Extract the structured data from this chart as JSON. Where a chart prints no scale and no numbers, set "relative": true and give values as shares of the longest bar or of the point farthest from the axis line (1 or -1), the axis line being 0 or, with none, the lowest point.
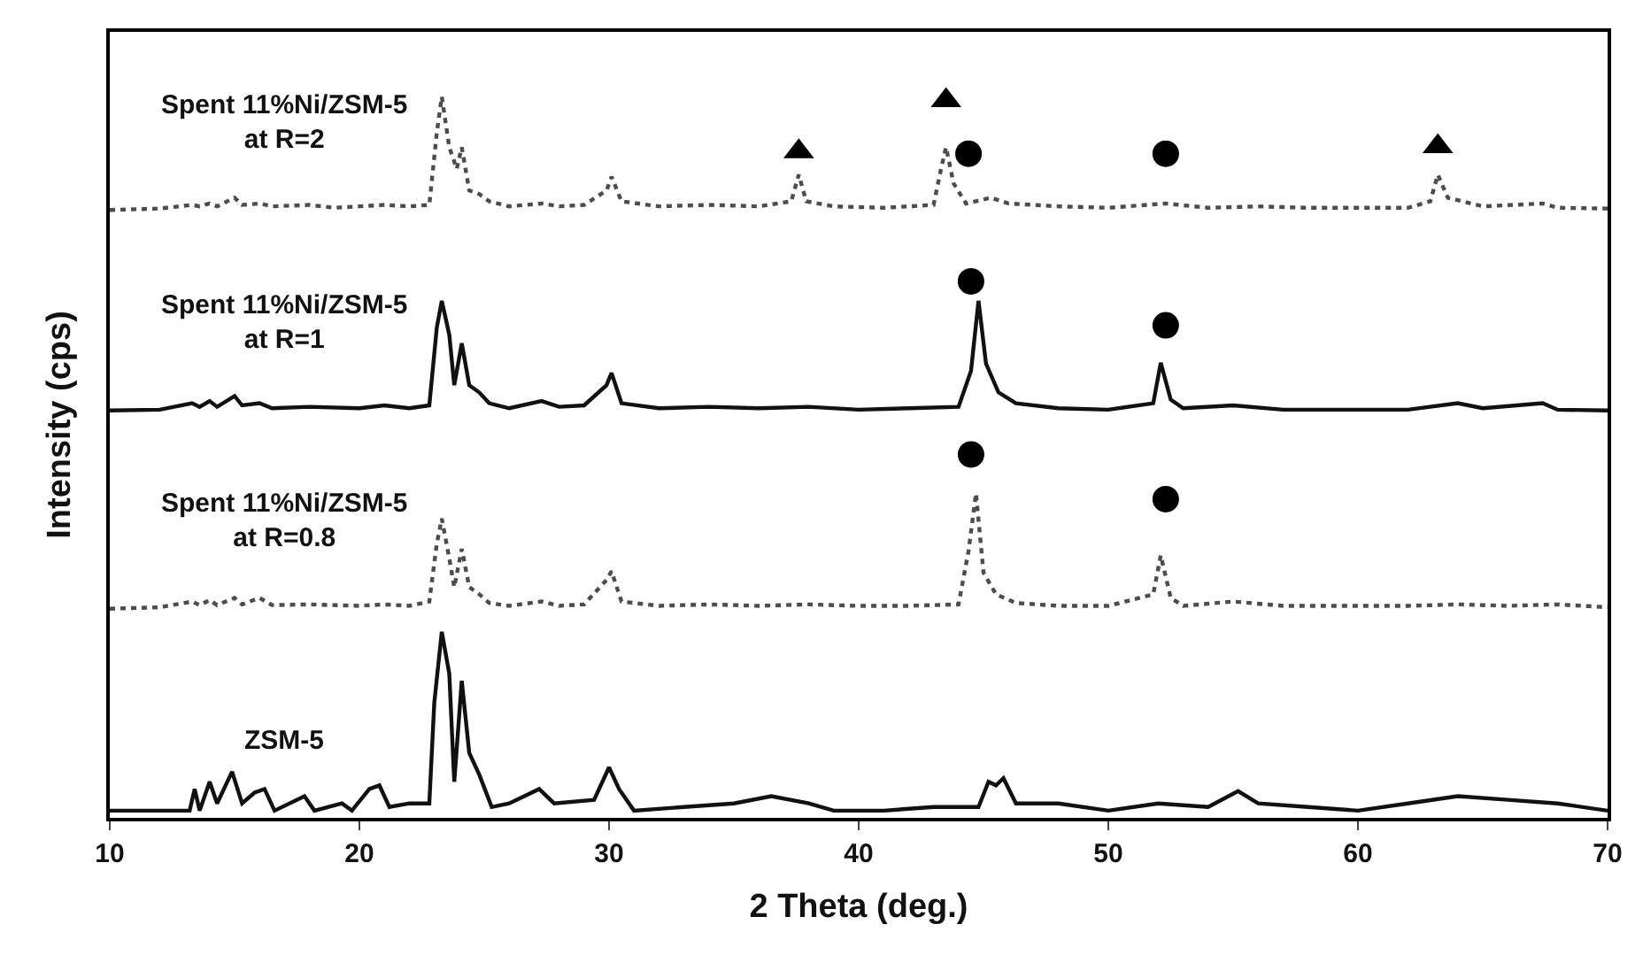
{
  "chart_data": {
    "type": "line",
    "relative": true,
    "xlabel": "2 Theta (deg.)",
    "ylabel": "Intensity (cps)",
    "xlim": [
      10,
      70
    ],
    "xticks": [
      10,
      20,
      30,
      40,
      50,
      60,
      70
    ],
    "legend": false,
    "series": [
      {
        "name": "Spent 11%Ni/ZSM-5\nat R=2",
        "color": "#4d4d4d",
        "line_style": "dotted",
        "x": [
          10,
          12,
          13.3,
          13.6,
          14,
          14.3,
          15,
          15.3,
          16,
          16.5,
          18,
          19,
          20,
          21,
          22,
          22.8,
          23.1,
          23.3,
          23.6,
          23.9,
          24.1,
          24.4,
          24.8,
          25.2,
          26,
          27.3,
          28,
          29,
          29.9,
          30.1,
          30.5,
          32,
          34,
          36,
          37.3,
          37.6,
          37.9,
          39,
          41,
          43,
          43.3,
          43.5,
          43.8,
          44.3,
          45.3,
          46,
          48,
          50,
          52.3,
          54,
          56,
          58,
          60,
          62,
          62.9,
          63.2,
          63.6,
          65,
          67.4,
          68,
          70
        ],
        "values": [
          0.843,
          0.845,
          0.85,
          0.848,
          0.852,
          0.848,
          0.86,
          0.85,
          0.852,
          0.848,
          0.85,
          0.846,
          0.848,
          0.85,
          0.848,
          0.85,
          0.95,
          1.0,
          0.93,
          0.9,
          0.93,
          0.87,
          0.865,
          0.855,
          0.848,
          0.852,
          0.848,
          0.85,
          0.87,
          0.889,
          0.855,
          0.848,
          0.85,
          0.848,
          0.855,
          0.892,
          0.855,
          0.848,
          0.846,
          0.85,
          0.9,
          0.93,
          0.88,
          0.852,
          0.86,
          0.852,
          0.848,
          0.846,
          0.852,
          0.846,
          0.848,
          0.846,
          0.846,
          0.846,
          0.855,
          0.892,
          0.86,
          0.848,
          0.852,
          0.846,
          0.845
        ]
      },
      {
        "name": "Spent 11%Ni/ZSM-5\nat R=1",
        "color": "#111111",
        "line_style": "solid",
        "x": [
          10,
          12,
          13.3,
          13.6,
          14,
          14.3,
          15,
          15.3,
          16,
          16.5,
          18,
          20,
          21,
          22,
          22.8,
          23.1,
          23.3,
          23.6,
          23.8,
          24.1,
          24.4,
          24.8,
          25.2,
          26,
          27.3,
          28,
          29,
          29.9,
          30.1,
          30.5,
          32,
          34,
          36,
          38,
          40,
          42,
          44,
          44.5,
          44.8,
          45.1,
          45.6,
          46.3,
          48,
          50,
          51.8,
          52.1,
          52.5,
          53,
          55,
          57,
          60,
          62,
          64,
          65,
          67.4,
          68,
          70
        ],
        "values": [
          0.565,
          0.566,
          0.575,
          0.57,
          0.578,
          0.57,
          0.585,
          0.572,
          0.575,
          0.568,
          0.57,
          0.568,
          0.572,
          0.568,
          0.572,
          0.68,
          0.717,
          0.67,
          0.6,
          0.658,
          0.6,
          0.59,
          0.575,
          0.568,
          0.578,
          0.57,
          0.572,
          0.6,
          0.617,
          0.575,
          0.568,
          0.57,
          0.568,
          0.57,
          0.566,
          0.568,
          0.57,
          0.62,
          0.717,
          0.63,
          0.59,
          0.575,
          0.568,
          0.566,
          0.575,
          0.631,
          0.58,
          0.568,
          0.572,
          0.566,
          0.566,
          0.566,
          0.575,
          0.568,
          0.575,
          0.566,
          0.565
        ]
      },
      {
        "name": "Spent 11%Ni/ZSM-5\nat R=0.8",
        "color": "#4d4d4d",
        "line_style": "dotted",
        "x": [
          10,
          12,
          13.3,
          13.6,
          14,
          14.3,
          15,
          15.3,
          16,
          16.5,
          18,
          20,
          21,
          22,
          22.8,
          23.1,
          23.3,
          23.6,
          23.8,
          24.1,
          24.4,
          24.8,
          25.2,
          26,
          27.3,
          28,
          29,
          29.9,
          30.1,
          30.5,
          32,
          34,
          36,
          38,
          40,
          42,
          44,
          44.4,
          44.7,
          45.0,
          45.5,
          46.3,
          48,
          50,
          51.8,
          52.1,
          52.5,
          53,
          55,
          57,
          60,
          62,
          64,
          66,
          68,
          70
        ],
        "values": [
          0.29,
          0.292,
          0.3,
          0.295,
          0.302,
          0.295,
          0.305,
          0.296,
          0.305,
          0.295,
          0.296,
          0.294,
          0.296,
          0.294,
          0.3,
          0.38,
          0.415,
          0.36,
          0.32,
          0.373,
          0.32,
          0.31,
          0.298,
          0.294,
          0.3,
          0.294,
          0.296,
          0.33,
          0.342,
          0.3,
          0.294,
          0.296,
          0.294,
          0.296,
          0.294,
          0.294,
          0.296,
          0.37,
          0.45,
          0.34,
          0.31,
          0.298,
          0.294,
          0.294,
          0.31,
          0.364,
          0.305,
          0.294,
          0.3,
          0.294,
          0.294,
          0.294,
          0.296,
          0.294,
          0.296,
          0.292
        ]
      },
      {
        "name": "ZSM-5",
        "color": "#111111",
        "line_style": "solid",
        "x": [
          10,
          12,
          13.2,
          13.4,
          13.6,
          14,
          14.3,
          14.9,
          15.3,
          15.8,
          16.2,
          16.6,
          17.8,
          18.2,
          19.3,
          19.7,
          20.4,
          20.8,
          21.2,
          22,
          22.8,
          23.0,
          23.3,
          23.6,
          23.8,
          24.1,
          24.4,
          24.8,
          25.3,
          26,
          27.2,
          27.8,
          29.4,
          30.0,
          30.4,
          31,
          33,
          35,
          36.5,
          38,
          39,
          41,
          43,
          44.8,
          45.2,
          45.5,
          45.8,
          46.3,
          48,
          50,
          52,
          54,
          55.2,
          56,
          58,
          60,
          62,
          64,
          66,
          68,
          70
        ],
        "values": [
          0.01,
          0.01,
          0.01,
          0.04,
          0.01,
          0.05,
          0.02,
          0.064,
          0.02,
          0.035,
          0.04,
          0.01,
          0.03,
          0.01,
          0.02,
          0.01,
          0.04,
          0.045,
          0.015,
          0.02,
          0.02,
          0.16,
          0.258,
          0.2,
          0.05,
          0.19,
          0.09,
          0.06,
          0.015,
          0.02,
          0.04,
          0.02,
          0.025,
          0.07,
          0.04,
          0.01,
          0.015,
          0.02,
          0.03,
          0.02,
          0.01,
          0.01,
          0.015,
          0.015,
          0.05,
          0.045,
          0.055,
          0.02,
          0.02,
          0.01,
          0.02,
          0.015,
          0.037,
          0.02,
          0.015,
          0.01,
          0.02,
          0.03,
          0.025,
          0.02,
          0.01
        ]
      },
      {
        "type": "scatter",
        "marker": "triangle",
        "color": "#000000",
        "x": [
          37.6,
          43.5,
          63.2
        ],
        "values": [
          0.924,
          0.995,
          0.931
        ]
      },
      {
        "type": "scatter",
        "marker": "circle",
        "color": "#000000",
        "x": [
          44.4,
          52.3,
          44.5,
          52.3,
          44.5,
          52.3
        ],
        "values": [
          0.921,
          0.921,
          0.744,
          0.683,
          0.504,
          0.442
        ]
      }
    ]
  }
}
